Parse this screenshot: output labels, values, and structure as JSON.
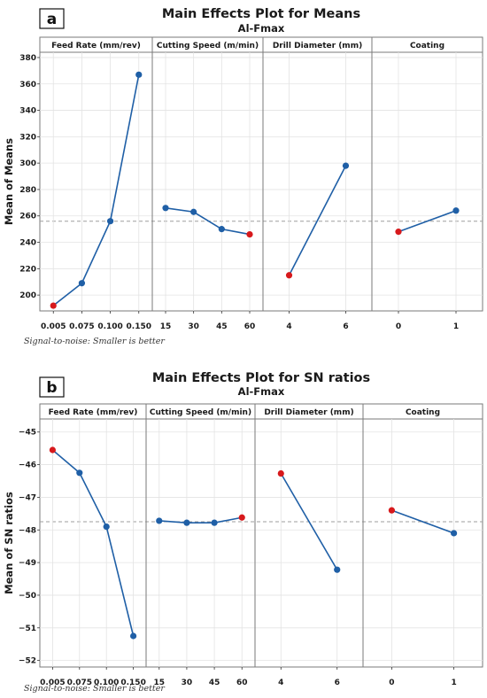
{
  "chart_data": [
    {
      "type": "line",
      "panel_letter": "a",
      "title": "Main Effects Plot for Means",
      "subtitle": "Al-Fmax",
      "ylabel": "Mean of Means",
      "ylim": [
        188,
        384
      ],
      "yticks": [
        200,
        220,
        240,
        260,
        280,
        300,
        320,
        340,
        360,
        380
      ],
      "reference_line": 256,
      "footnote": "Signal-to-noise: Smaller is better",
      "grid": true,
      "factors": [
        {
          "name": "Feed Rate (mm/rev)",
          "levels": [
            "0.005",
            "0.075",
            "0.100",
            "0.150"
          ],
          "values": [
            192,
            209,
            256,
            367
          ],
          "min_level_index": 0
        },
        {
          "name": "Cutting Speed (m/min)",
          "levels": [
            "15",
            "30",
            "45",
            "60"
          ],
          "values": [
            266,
            263,
            250,
            246
          ],
          "min_level_index": 3
        },
        {
          "name": "Drill Diameter (mm)",
          "levels": [
            "4",
            "6"
          ],
          "values": [
            215,
            298
          ],
          "min_level_index": 0
        },
        {
          "name": "Coating",
          "levels": [
            "0",
            "1"
          ],
          "values": [
            248,
            264
          ],
          "min_level_index": 0
        }
      ]
    },
    {
      "type": "line",
      "panel_letter": "b",
      "title": "Main Effects Plot for SN ratios",
      "subtitle": "Al-Fmax",
      "ylabel": "Mean of SN ratios",
      "ylim": [
        -52.2,
        -44.6
      ],
      "yticks": [
        -45,
        -46,
        -47,
        -48,
        -49,
        -50,
        -51,
        -52
      ],
      "reference_line": -47.75,
      "footnote": "Signal-to-noise: Smaller is better",
      "grid": true,
      "factors": [
        {
          "name": "Feed Rate (mm/rev)",
          "levels": [
            "0.005",
            "0.075",
            "0.100",
            "0.150"
          ],
          "values": [
            -45.55,
            -46.25,
            -47.9,
            -51.25
          ],
          "max_level_index": 0
        },
        {
          "name": "Cutting Speed (m/min)",
          "levels": [
            "15",
            "30",
            "45",
            "60"
          ],
          "values": [
            -47.72,
            -47.78,
            -47.78,
            -47.62
          ],
          "max_level_index": 3
        },
        {
          "name": "Drill Diameter (mm)",
          "levels": [
            "4",
            "6"
          ],
          "values": [
            -46.27,
            -49.22
          ],
          "max_level_index": 0
        },
        {
          "name": "Coating",
          "levels": [
            "0",
            "1"
          ],
          "values": [
            -47.4,
            -48.1
          ],
          "max_level_index": 0
        }
      ]
    }
  ],
  "colors": {
    "line": "#1f5fa6",
    "point": "#1f5fa6",
    "highlight_point": "#d7191c",
    "reference_line": "#9e9e9e",
    "grid": "#e3e3e3",
    "frame": "#7a7a7a",
    "header_fill": "#ffffff"
  }
}
